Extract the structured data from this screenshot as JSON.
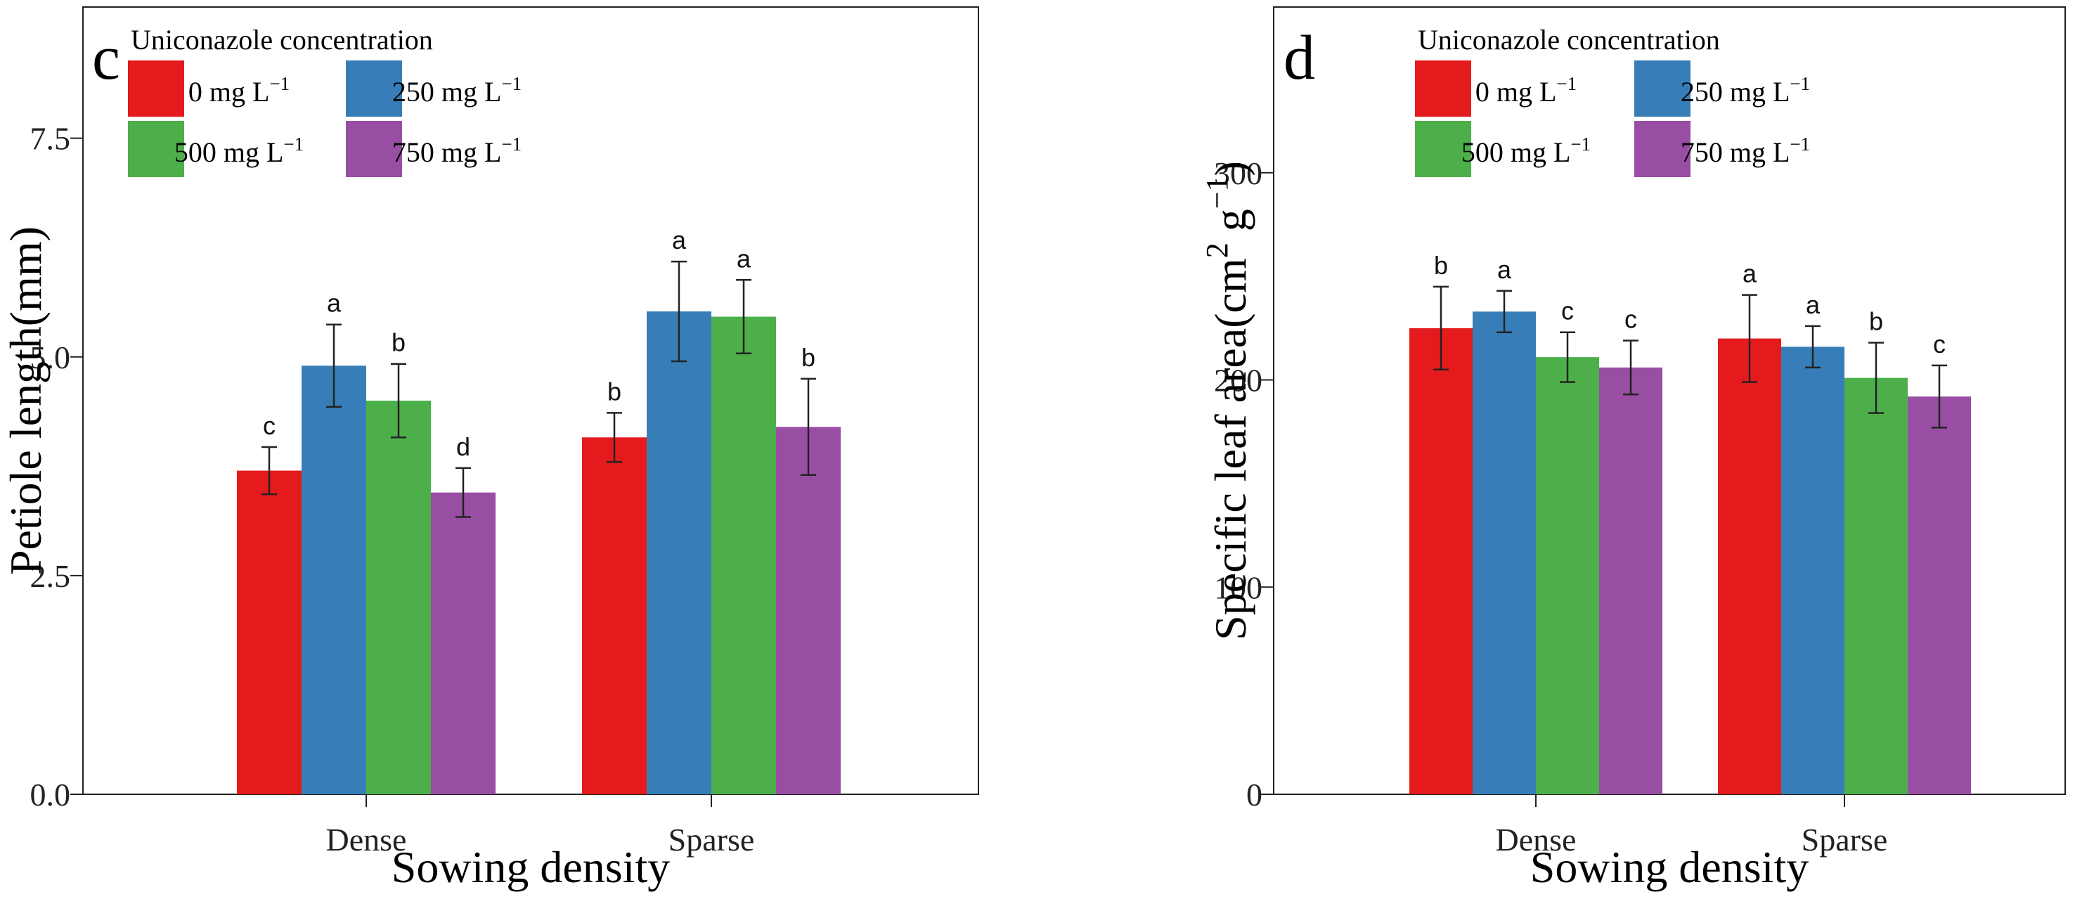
{
  "chart_data": [
    {
      "type": "bar",
      "panel_label": "c",
      "ylabel": "Petiole length(mm)",
      "xlabel": "Sowing density",
      "ylim": [
        0,
        9
      ],
      "yticks": [
        "0.0",
        "2.5",
        "5.0",
        "7.5"
      ],
      "ytick_values": [
        0,
        2.5,
        5,
        7.5
      ],
      "categories": [
        "Dense",
        "Sparse"
      ],
      "legend_title": "Uniconazole concentration",
      "series": [
        {
          "name": "0 mg L",
          "sup": "−1",
          "color": "#e41a1c",
          "values": [
            3.7,
            4.08
          ],
          "errors": [
            0.27,
            0.28
          ],
          "letters": [
            "c",
            "b"
          ]
        },
        {
          "name": "250 mg L",
          "sup": "−1",
          "color": "#377eb8",
          "values": [
            4.9,
            5.52
          ],
          "errors": [
            0.47,
            0.57
          ],
          "letters": [
            "a",
            "a"
          ]
        },
        {
          "name": "500 mg L",
          "sup": "−1",
          "color": "#4daf4a",
          "values": [
            4.5,
            5.46
          ],
          "errors": [
            0.42,
            0.42
          ],
          "letters": [
            "b",
            "a"
          ]
        },
        {
          "name": "750 mg L",
          "sup": "−1",
          "color": "#984ea3",
          "values": [
            3.45,
            4.2
          ],
          "errors": [
            0.28,
            0.55
          ],
          "letters": [
            "d",
            "b"
          ]
        }
      ]
    },
    {
      "type": "bar",
      "panel_label": "d",
      "ylabel": "Specific leaf area(cm",
      "ylabel_sup1": "2",
      "ylabel_mid": " g",
      "ylabel_sup2": "−1",
      "ylabel_end": ")",
      "xlabel": "Sowing density",
      "ylim": [
        0,
        380
      ],
      "yticks": [
        "0",
        "100",
        "200",
        "300"
      ],
      "ytick_values": [
        0,
        100,
        200,
        300
      ],
      "categories": [
        "Dense",
        "Sparse"
      ],
      "legend_title": "Uniconazole concentration",
      "series": [
        {
          "name": "0 mg L",
          "sup": "−1",
          "color": "#e41a1c",
          "values": [
            225,
            220
          ],
          "errors": [
            20,
            21
          ],
          "letters": [
            "b",
            "a"
          ]
        },
        {
          "name": "250 mg L",
          "sup": "−1",
          "color": "#377eb8",
          "values": [
            233,
            216
          ],
          "errors": [
            10,
            10
          ],
          "letters": [
            "a",
            "a"
          ]
        },
        {
          "name": "500 mg L",
          "sup": "−1",
          "color": "#4daf4a",
          "values": [
            211,
            201
          ],
          "errors": [
            12,
            17
          ],
          "letters": [
            "c",
            "b"
          ]
        },
        {
          "name": "750 mg L",
          "sup": "−1",
          "color": "#984ea3",
          "values": [
            206,
            192
          ],
          "errors": [
            13,
            15
          ],
          "letters": [
            "c",
            "c"
          ]
        }
      ]
    }
  ]
}
